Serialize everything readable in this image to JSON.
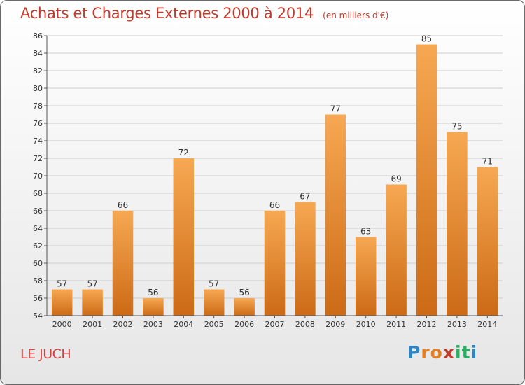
{
  "title": "Achats et Charges Externes 2000 à 2014",
  "subtitle": "(en milliers d'€)",
  "place": "LE JUCH",
  "brand": {
    "letters": [
      "P",
      "r",
      "o",
      "x",
      "i",
      "t",
      "i"
    ],
    "colors": [
      "#2e86c1",
      "#e67e22",
      "#e67e22",
      "#c0392b",
      "#27ae60",
      "#27ae60",
      "#2e86c1"
    ]
  },
  "colors": {
    "bar_top": "#f7a852",
    "bar_bottom": "#cc6a16",
    "title": "#c0392b",
    "grid": "#cccccc"
  },
  "chart_data": {
    "type": "bar",
    "categories": [
      "2000",
      "2001",
      "2002",
      "2003",
      "2004",
      "2005",
      "2006",
      "2007",
      "2008",
      "2009",
      "2010",
      "2011",
      "2012",
      "2013",
      "2014"
    ],
    "values": [
      57,
      57,
      66,
      56,
      72,
      57,
      56,
      66,
      67,
      77,
      63,
      69,
      85,
      75,
      71
    ],
    "ylim": [
      54,
      86
    ],
    "yticks": [
      54,
      56,
      58,
      60,
      62,
      64,
      66,
      68,
      70,
      72,
      74,
      76,
      78,
      80,
      82,
      84,
      86
    ],
    "grid": true,
    "xlabel": "",
    "ylabel": ""
  }
}
